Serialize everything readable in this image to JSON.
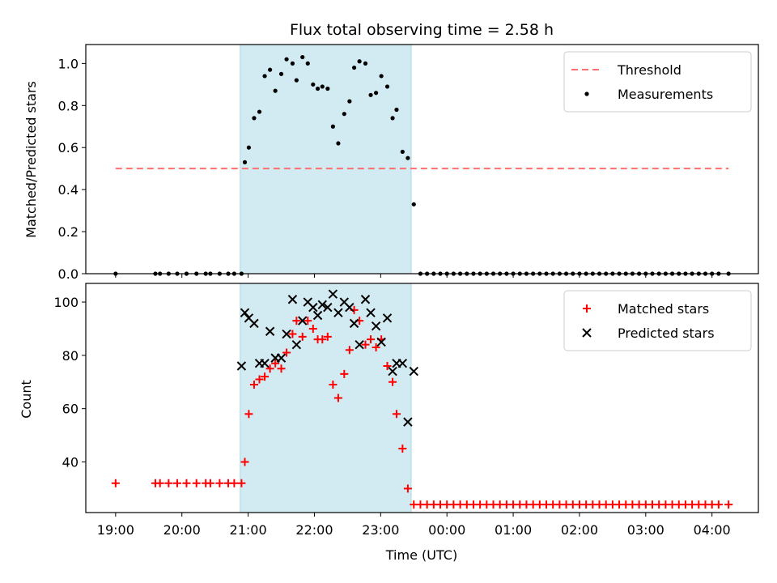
{
  "chart_data": [
    {
      "type": "scatter",
      "title": "Flux total observing time = 2.58 h",
      "ylabel": "Matched/Predicted stars",
      "xlabel": "",
      "x_unit": "hours since 19:00 UTC",
      "xlim": [
        -0.45,
        9.7
      ],
      "ylim": [
        0,
        1.09
      ],
      "yticks": [
        0.0,
        0.2,
        0.4,
        0.6,
        0.8,
        1.0
      ],
      "ytick_labels": [
        "0.0",
        "0.2",
        "0.4",
        "0.6",
        "0.8",
        "1.0"
      ],
      "xticks": [
        0,
        1,
        2,
        3,
        4,
        5,
        6,
        7,
        8,
        9
      ],
      "show_xtick_labels": false,
      "legend_position": "upper right",
      "shaded_region": {
        "x0": 1.88,
        "x1": 4.46,
        "color": "#add8e6"
      },
      "threshold": {
        "name": "Threshold",
        "y": 0.5,
        "x0": 0,
        "x1": 9.25,
        "color": "#ff7070"
      },
      "series": [
        {
          "name": "Measurements",
          "color": "#000000",
          "x": [
            0,
            0.6,
            0.67,
            0.8,
            0.93,
            1.07,
            1.22,
            1.36,
            1.43,
            1.57,
            1.7,
            1.79,
            1.9,
            1.95,
            2.01,
            2.09,
            2.17,
            2.25,
            2.33,
            2.41,
            2.5,
            2.58,
            2.67,
            2.73,
            2.82,
            2.9,
            2.98,
            3.05,
            3.12,
            3.2,
            3.28,
            3.36,
            3.45,
            3.53,
            3.6,
            3.68,
            3.77,
            3.85,
            3.93,
            4.01,
            4.1,
            4.18,
            4.24,
            4.33,
            4.41,
            4.5,
            4.6,
            4.7,
            4.8,
            4.9,
            5.0,
            5.1,
            5.2,
            5.3,
            5.4,
            5.5,
            5.6,
            5.7,
            5.8,
            5.9,
            6.0,
            6.1,
            6.2,
            6.3,
            6.4,
            6.5,
            6.6,
            6.7,
            6.8,
            6.9,
            7.0,
            7.1,
            7.2,
            7.3,
            7.4,
            7.5,
            7.6,
            7.7,
            7.8,
            7.9,
            8.0,
            8.1,
            8.2,
            8.3,
            8.4,
            8.5,
            8.6,
            8.7,
            8.8,
            8.9,
            9.0,
            9.1,
            9.25
          ],
          "y": [
            0,
            0,
            0,
            0,
            0,
            0,
            0,
            0,
            0,
            0,
            0,
            0,
            0,
            0.53,
            0.6,
            0.74,
            0.77,
            0.94,
            0.97,
            0.87,
            0.95,
            1.02,
            1.0,
            0.92,
            1.03,
            1.0,
            0.9,
            0.88,
            0.89,
            0.88,
            0.7,
            0.62,
            0.76,
            0.82,
            0.98,
            1.01,
            1.0,
            0.85,
            0.86,
            0.94,
            0.89,
            0.74,
            0.78,
            0.58,
            0.55,
            0.33,
            0,
            0,
            0,
            0,
            0,
            0,
            0,
            0,
            0,
            0,
            0,
            0,
            0,
            0,
            0,
            0,
            0,
            0,
            0,
            0,
            0,
            0,
            0,
            0,
            0,
            0,
            0,
            0,
            0,
            0,
            0,
            0,
            0,
            0,
            0,
            0,
            0,
            0,
            0,
            0,
            0,
            0,
            0,
            0,
            0,
            0,
            0
          ]
        }
      ]
    },
    {
      "type": "scatter",
      "title": "",
      "ylabel": "Count",
      "xlabel": "Time (UTC)",
      "x_unit": "hours since 19:00 UTC",
      "xlim": [
        -0.45,
        9.7
      ],
      "ylim": [
        21,
        107
      ],
      "yticks": [
        40,
        60,
        80,
        100
      ],
      "ytick_labels": [
        "40",
        "60",
        "80",
        "100"
      ],
      "xticks": [
        0,
        1,
        2,
        3,
        4,
        5,
        6,
        7,
        8,
        9
      ],
      "xtick_labels": [
        "19:00",
        "20:00",
        "21:00",
        "22:00",
        "23:00",
        "00:00",
        "01:00",
        "02:00",
        "03:00",
        "04:00"
      ],
      "legend_position": "upper right",
      "shaded_region": {
        "x0": 1.88,
        "x1": 4.46,
        "color": "#add8e6"
      },
      "series": [
        {
          "name": "Matched stars",
          "marker": "plus",
          "color": "#ff0000",
          "x": [
            0,
            0.6,
            0.67,
            0.8,
            0.93,
            1.07,
            1.22,
            1.36,
            1.43,
            1.57,
            1.7,
            1.79,
            1.9,
            1.95,
            2.01,
            2.09,
            2.17,
            2.25,
            2.33,
            2.41,
            2.5,
            2.58,
            2.67,
            2.73,
            2.82,
            2.9,
            2.98,
            3.05,
            3.12,
            3.2,
            3.28,
            3.36,
            3.45,
            3.53,
            3.6,
            3.68,
            3.77,
            3.85,
            3.93,
            4.01,
            4.1,
            4.18,
            4.24,
            4.33,
            4.41,
            4.5,
            4.6,
            4.7,
            4.8,
            4.9,
            5.0,
            5.1,
            5.2,
            5.3,
            5.4,
            5.5,
            5.6,
            5.7,
            5.8,
            5.9,
            6.0,
            6.1,
            6.2,
            6.3,
            6.4,
            6.5,
            6.6,
            6.7,
            6.8,
            6.9,
            7.0,
            7.1,
            7.2,
            7.3,
            7.4,
            7.5,
            7.6,
            7.7,
            7.8,
            7.9,
            8.0,
            8.1,
            8.2,
            8.3,
            8.4,
            8.5,
            8.6,
            8.7,
            8.8,
            8.9,
            9.0,
            9.1,
            9.25
          ],
          "y": [
            32,
            32,
            32,
            32,
            32,
            32,
            32,
            32,
            32,
            32,
            32,
            32,
            32,
            40,
            58,
            69,
            71,
            72,
            75,
            77,
            75,
            81,
            88,
            93,
            87,
            93,
            90,
            86,
            86,
            87,
            69,
            64,
            73,
            82,
            97,
            93,
            84,
            86,
            83,
            86,
            76,
            70,
            58,
            45,
            30,
            24,
            24,
            24,
            24,
            24,
            24,
            24,
            24,
            24,
            24,
            24,
            24,
            24,
            24,
            24,
            24,
            24,
            24,
            24,
            24,
            24,
            24,
            24,
            24,
            24,
            24,
            24,
            24,
            24,
            24,
            24,
            24,
            24,
            24,
            24,
            24,
            24,
            24,
            24,
            24,
            24,
            24,
            24,
            24,
            24,
            24,
            24,
            24
          ]
        },
        {
          "name": "Predicted stars",
          "marker": "x",
          "color": "#000000",
          "x": [
            1.9,
            1.95,
            2.01,
            2.09,
            2.17,
            2.25,
            2.33,
            2.41,
            2.5,
            2.58,
            2.67,
            2.73,
            2.82,
            2.9,
            2.98,
            3.05,
            3.12,
            3.2,
            3.28,
            3.36,
            3.45,
            3.53,
            3.6,
            3.68,
            3.77,
            3.85,
            3.93,
            4.01,
            4.1,
            4.18,
            4.24,
            4.33,
            4.41,
            4.5
          ],
          "y": [
            76,
            96,
            94,
            92,
            77,
            77,
            89,
            79,
            79,
            88,
            101,
            84,
            93,
            100,
            98,
            95,
            99,
            98,
            103,
            96,
            100,
            98,
            92,
            84,
            101,
            96,
            91,
            85,
            94,
            74,
            77,
            77,
            55,
            74
          ]
        }
      ]
    }
  ]
}
